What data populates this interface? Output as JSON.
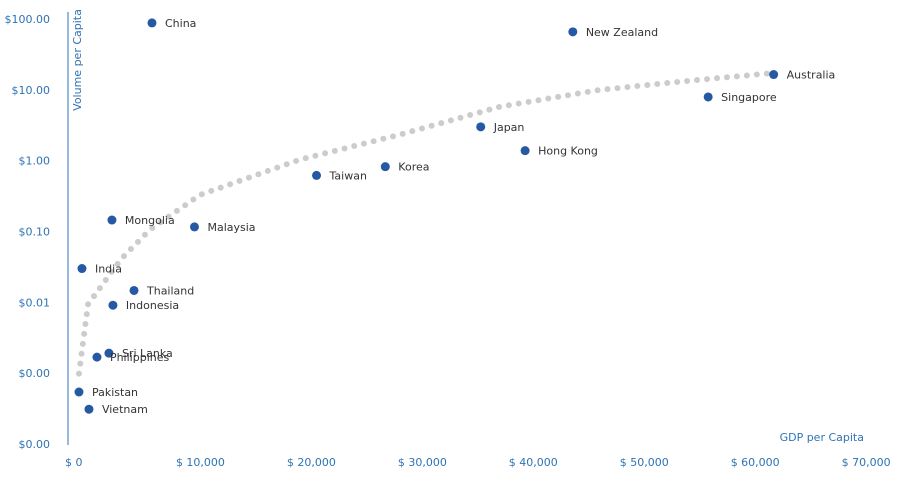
{
  "chart_data": {
    "type": "scatter",
    "x_label": "GDP per Capita",
    "y_label": "Volume per Capita",
    "log_y": true,
    "color": "#2559a3",
    "label_color": "#333333",
    "axis_color": "#2f73b5",
    "labels": [
      "China",
      "New Zealand",
      "Australia",
      "Singapore",
      "Japan",
      "Hong Kong",
      "Korea",
      "Taiwan",
      "Malaysia",
      "Mongolia",
      "India",
      "Thailand",
      "Indonesia",
      "Sri Lanka",
      "Philippines",
      "Pakistan",
      "Vietnam"
    ],
    "x": [
      7570,
      45500,
      63600,
      57700,
      37200,
      41200,
      28600,
      22400,
      11400,
      3960,
      1260,
      5950,
      4050,
      3690,
      2610,
      990,
      1890
    ],
    "values": [
      91,
      68,
      17,
      8.2,
      3.1,
      1.43,
      0.85,
      0.64,
      0.12,
      0.15,
      0.031,
      0.0152,
      0.0094,
      0.00198,
      0.00174,
      0.00056,
      0.00032
    ],
    "trend": {
      "color": "#cccccc",
      "x": [
        990,
        1800,
        4780,
        7390,
        11900,
        20900,
        29900,
        38900,
        47900,
        56900,
        63700
      ],
      "values": [
        0.00102,
        0.0097,
        0.042,
        0.11,
        0.34,
        1.07,
        2.4,
        5.95,
        10.3,
        14.3,
        17.9
      ]
    },
    "xlim": [
      0,
      74900
    ],
    "ylim": [
      0.0001,
      100
    ],
    "xticks": [
      {
        "value": 0,
        "label": "$ 0"
      },
      {
        "value": 10000,
        "label": "$ 10,000"
      },
      {
        "value": 20000,
        "label": "$ 20,000"
      },
      {
        "value": 30000,
        "label": "$ 30,000"
      },
      {
        "value": 40000,
        "label": "$ 40,000"
      },
      {
        "value": 50000,
        "label": "$ 50,000"
      },
      {
        "value": 60000,
        "label": "$ 60,000"
      },
      {
        "value": 70000,
        "label": "$ 70,000"
      }
    ],
    "yticks": [
      {
        "value": 100,
        "label": "$100.00"
      },
      {
        "value": 10,
        "label": "$10.00"
      },
      {
        "value": 1,
        "label": "$1.00"
      },
      {
        "value": 0.1,
        "label": "$0.10"
      },
      {
        "value": 0.01,
        "label": "$0.01"
      },
      {
        "value": 0.001,
        "label": "$0.00"
      },
      {
        "value": 0.0001,
        "label": "$0.00"
      }
    ]
  }
}
